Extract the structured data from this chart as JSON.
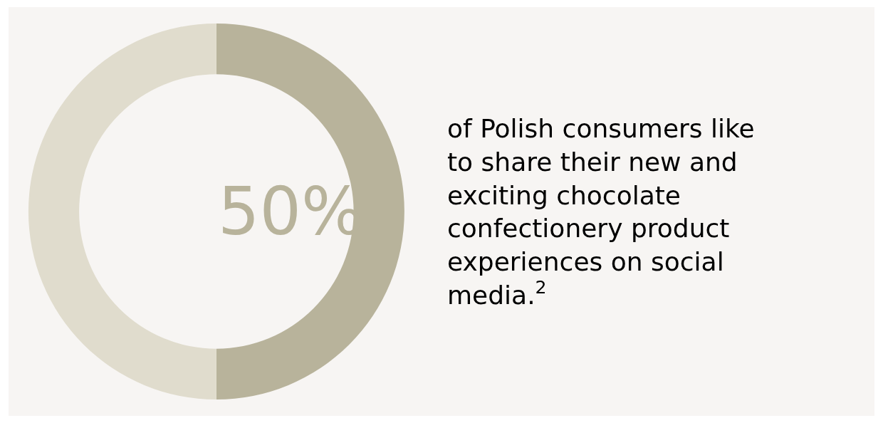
{
  "chart_data": {
    "type": "donut",
    "categories": [
      null,
      null
    ],
    "values": [
      50,
      50
    ],
    "colors": [
      "#b8b39b",
      "#e0dccd"
    ],
    "value_labels": [
      "50%",
      null
    ],
    "annotations": [
      "of Polish consumers like to share their new and exciting chocolate confectionery product experiences on social media.$^{2}$"
    ],
    "legend": false
  }
}
